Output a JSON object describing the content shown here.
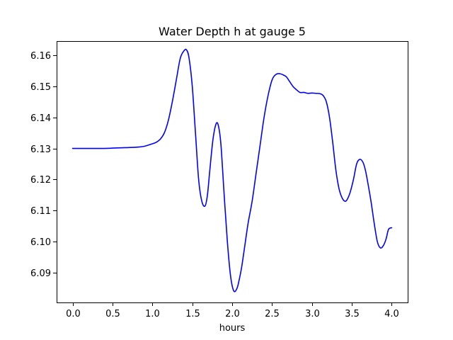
{
  "chart_data": {
    "type": "line",
    "title": "Water Depth h at gauge 5",
    "xlabel": "hours",
    "ylabel": "",
    "xlim": [
      -0.2,
      4.2
    ],
    "ylim": [
      6.0805,
      6.1645
    ],
    "xticks": [
      0.0,
      0.5,
      1.0,
      1.5,
      2.0,
      2.5,
      3.0,
      3.5,
      4.0
    ],
    "xtick_labels": [
      "0.0",
      "0.5",
      "1.0",
      "1.5",
      "2.0",
      "2.5",
      "3.0",
      "3.5",
      "4.0"
    ],
    "yticks": [
      6.09,
      6.1,
      6.11,
      6.12,
      6.13,
      6.14,
      6.15,
      6.16
    ],
    "ytick_labels": [
      "6.09",
      "6.10",
      "6.11",
      "6.12",
      "6.13",
      "6.14",
      "6.15",
      "6.16"
    ],
    "grid": false,
    "series": [
      {
        "color": "#0000ff",
        "x": [
          0.0,
          0.2,
          0.4,
          0.5,
          0.6,
          0.8,
          0.9,
          1.0,
          1.05,
          1.1,
          1.15,
          1.2,
          1.25,
          1.3,
          1.35,
          1.4,
          1.43,
          1.46,
          1.5,
          1.54,
          1.58,
          1.62,
          1.66,
          1.69,
          1.72,
          1.76,
          1.8,
          1.83,
          1.86,
          1.9,
          1.94,
          1.98,
          2.02,
          2.06,
          2.09,
          2.12,
          2.16,
          2.2,
          2.25,
          2.3,
          2.35,
          2.4,
          2.45,
          2.5,
          2.55,
          2.6,
          2.65,
          2.68,
          2.72,
          2.76,
          2.8,
          2.85,
          2.9,
          2.95,
          3.0,
          3.05,
          3.1,
          3.14,
          3.18,
          3.22,
          3.26,
          3.3,
          3.34,
          3.38,
          3.42,
          3.45,
          3.48,
          3.52,
          3.56,
          3.6,
          3.64,
          3.67,
          3.7,
          3.74,
          3.78,
          3.82,
          3.86,
          3.9,
          3.93,
          3.96,
          4.0
        ],
        "y": [
          6.13,
          6.13,
          6.13,
          6.1301,
          6.1302,
          6.1304,
          6.1307,
          6.1315,
          6.132,
          6.133,
          6.135,
          6.139,
          6.145,
          6.152,
          6.159,
          6.1615,
          6.1616,
          6.159,
          6.15,
          6.135,
          6.12,
          6.113,
          6.1115,
          6.115,
          6.123,
          6.133,
          6.138,
          6.137,
          6.131,
          6.115,
          6.1,
          6.089,
          6.0842,
          6.085,
          6.088,
          6.092,
          6.099,
          6.106,
          6.113,
          6.122,
          6.131,
          6.14,
          6.147,
          6.152,
          6.1538,
          6.154,
          6.1535,
          6.153,
          6.1515,
          6.15,
          6.149,
          6.148,
          6.148,
          6.1477,
          6.1478,
          6.1477,
          6.1476,
          6.147,
          6.145,
          6.14,
          6.132,
          6.123,
          6.117,
          6.114,
          6.113,
          6.114,
          6.116,
          6.12,
          6.125,
          6.1265,
          6.1255,
          6.123,
          6.119,
          6.113,
          6.106,
          6.1,
          6.098,
          6.099,
          6.101,
          6.104,
          6.1045
        ]
      }
    ]
  }
}
